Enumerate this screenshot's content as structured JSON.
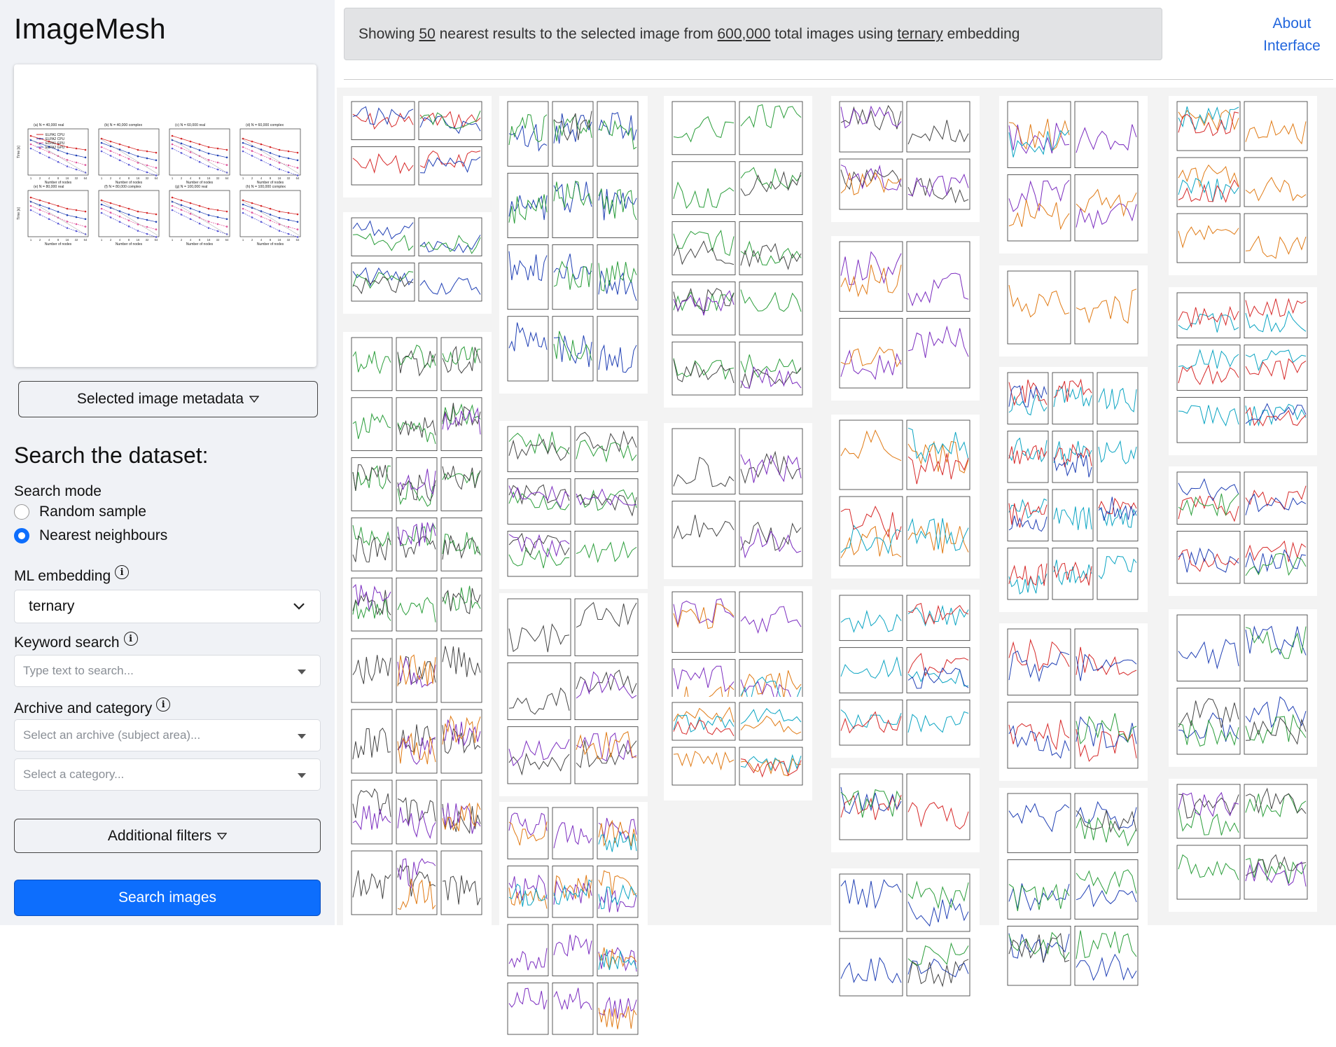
{
  "app": {
    "title": "ImageMesh"
  },
  "sidebar": {
    "metadata_button": "Selected image metadata",
    "search_heading": "Search the dataset:",
    "search_mode_label": "Search mode",
    "modes": [
      {
        "label": "Random sample",
        "selected": false
      },
      {
        "label": "Nearest neighbours",
        "selected": true
      }
    ],
    "embedding_label": "ML embedding",
    "embedding_value": "ternary",
    "keyword_label": "Keyword search",
    "keyword_placeholder": "Type text to search...",
    "archive_label": "Archive and category",
    "archive_placeholder": "Select an archive (subject area)...",
    "category_placeholder": "Select a category...",
    "filters_button": "Additional filters",
    "search_button": "Search images"
  },
  "preview_image": {
    "panels": [
      "(a) N = 40,000 real",
      "(b) N = 40,000 complex",
      "(c) N = 60,000 real",
      "(d) N = 60,000 complex",
      "(e) N = 80,000 real",
      "(f) N = 80,000 complex",
      "(g) N = 100,000 real",
      "(h) N = 100,000 complex"
    ],
    "legend": [
      "ELPA1 CPU",
      "ELPA2 CPU",
      "ELPA1 GPU",
      "ELPA2 GPU"
    ],
    "ylabel": "Time [s]",
    "xlabel": "Number of nodes",
    "xticks": [
      "1",
      "2",
      "4",
      "8",
      "16",
      "32",
      "64"
    ]
  },
  "results": {
    "prefix": "Showing",
    "count": "50",
    "middle": "nearest results to the selected image from",
    "total": "600,000",
    "middle2": "total images using",
    "embedding": "ternary",
    "suffix": "embedding"
  },
  "header": {
    "about_line1": "About",
    "about_line2": "Interface"
  },
  "colors": {
    "primary": "#0d6efd",
    "sidebar_bg": "#f0f2f6",
    "info_bg": "#e2e3e5",
    "link": "#2266dd"
  },
  "icons": {
    "dropdown": "triangle-down-icon",
    "info": "info-circle-icon",
    "chevron": "chevron-down-icon",
    "caret": "caret-down-icon"
  }
}
